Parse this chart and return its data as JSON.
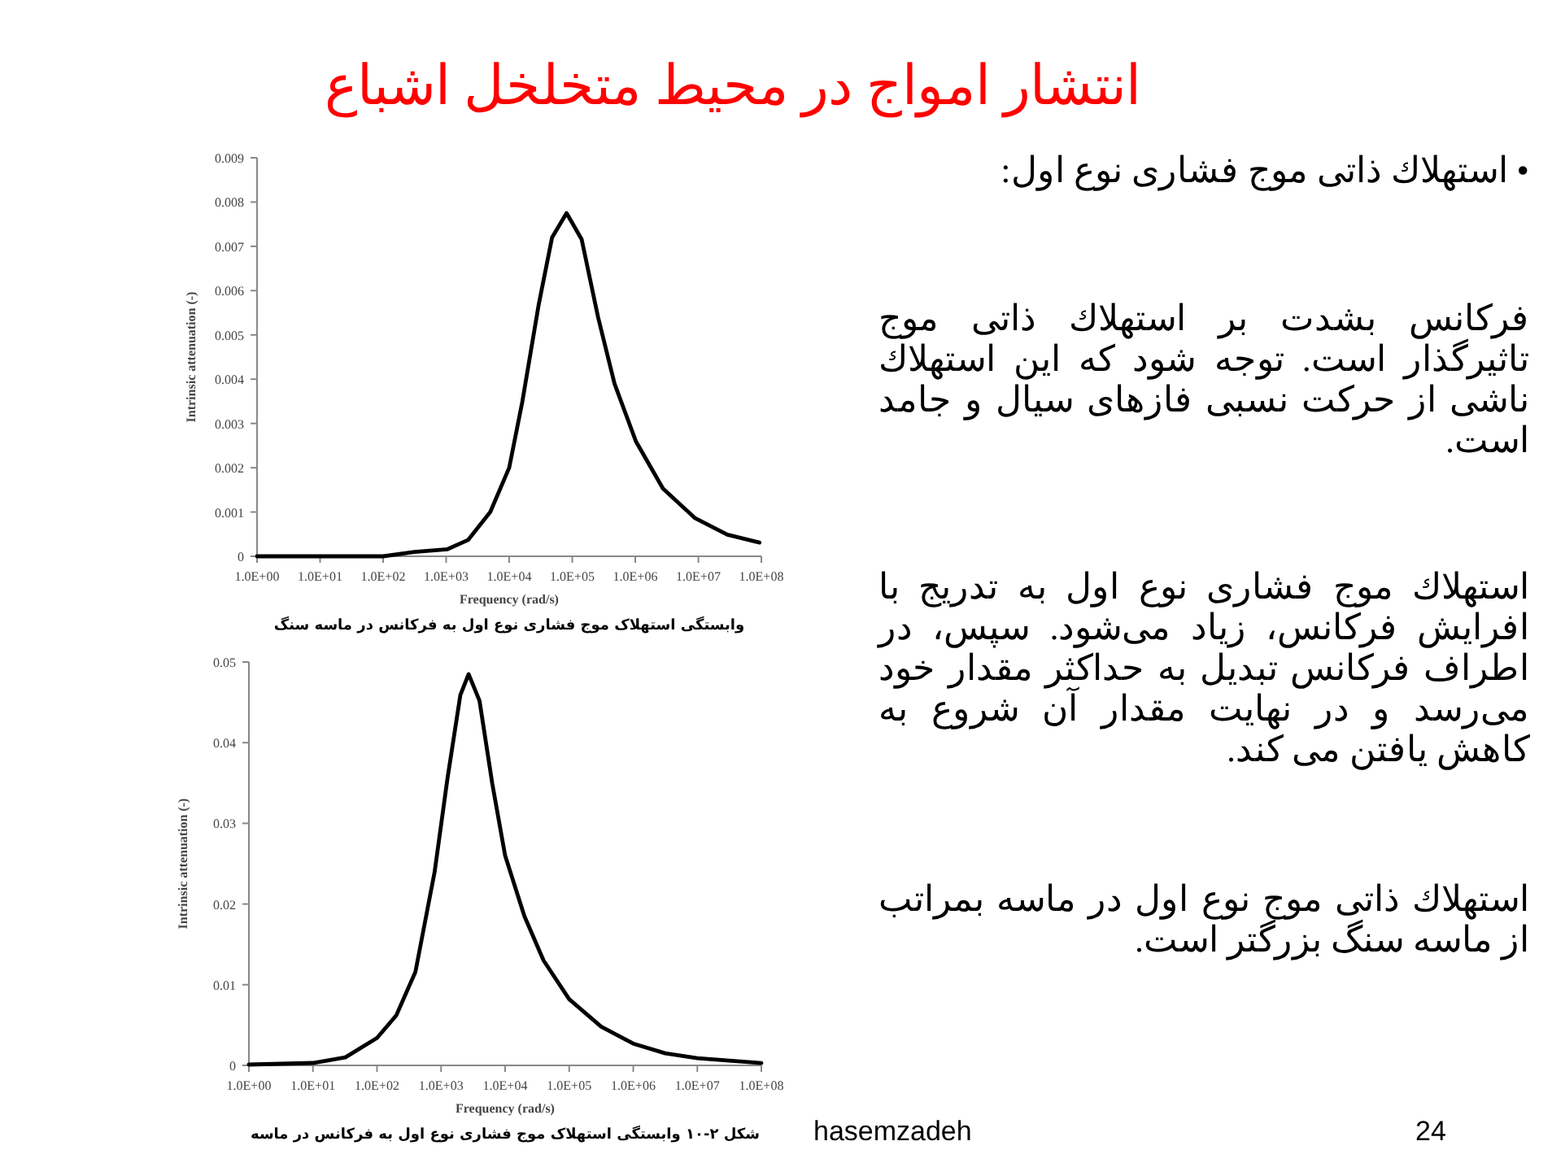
{
  "chart_data": [
    {
      "type": "other",
      "title": "انتشار امواج در محیط متخلخل اشباع",
      "annotations": [
        "• استهلاك ذاتی موج فشاری نوع اول:",
        "فرکانس بشدت بر استهلاك ذاتی موج تاثیرگذار است. توجه شود که این استهلاك ناشی از حرکت نسبی فازهای سیال و جامد است.",
        "استهلاك موج فشاری نوع اول به تدریج با افرایش فرکانس، زیاد می‌شود. سپس، در اطراف فرکانس تبدیل به حداکثر مقدار خود می‌رسد و در نهایت مقدار آن شروع به کاهش یافتن می کند.",
        "استهلاك ذاتی موج نوع اول در ماسه بمراتب از ماسه سنگ بزرگتر است.",
        "hasemzadeh",
        "24"
      ]
    },
    {
      "type": "line",
      "xlabel": "Frequency (rad/s)",
      "ylabel": "Intrinsic attenuation (-)",
      "log": "x",
      "xlim": [
        1,
        100000000
      ],
      "xticks": [
        {
          "value": 1,
          "label": "1.0E+00"
        },
        {
          "value": 10,
          "label": "1.0E+01"
        },
        {
          "value": 100,
          "label": "1.0E+02"
        },
        {
          "value": 1000,
          "label": "1.0E+03"
        },
        {
          "value": 10000,
          "label": "1.0E+04"
        },
        {
          "value": 100000,
          "label": "1.0E+05"
        },
        {
          "value": 1000000,
          "label": "1.0E+06"
        },
        {
          "value": 10000000,
          "label": "1.0E+07"
        },
        {
          "value": 100000000,
          "label": "1.0E+08"
        }
      ],
      "ylim": [
        0,
        0.009
      ],
      "yticks": [
        0,
        0.001,
        0.002,
        0.003,
        0.004,
        0.005,
        0.006,
        0.007,
        0.008,
        0.009
      ],
      "x": [
        1,
        10,
        100,
        316,
        1050,
        2240,
        5010,
        10000,
        16200,
        29500,
        47900,
        81300,
        141000,
        257000,
        468000,
        1020000,
        2750000,
        8910000,
        28800000,
        93300000
      ],
      "series": [
        {
          "color": "#000000",
          "values": [
            0,
            0,
            0,
            0.0001,
            0.00016,
            0.00037,
            0.001,
            0.002,
            0.0035,
            0.0057,
            0.0072,
            0.00775,
            0.00716,
            0.0054,
            0.0039,
            0.0026,
            0.00153,
            0.00086,
            0.00049,
            0.00031
          ]
        }
      ],
      "annotations": [
        "وابستگی استهلاک موج فشاری نوع اول به فرکانس در ماسه سنگ"
      ]
    },
    {
      "type": "line",
      "xlabel": "Frequency (rad/s)",
      "ylabel": "Intrinsic attenuation (-)",
      "log": "x",
      "xlim": [
        1,
        100000000
      ],
      "xticks": [
        {
          "value": 1,
          "label": "1.0E+00"
        },
        {
          "value": 10,
          "label": "1.0E+01"
        },
        {
          "value": 100,
          "label": "1.0E+02"
        },
        {
          "value": 1000,
          "label": "1.0E+03"
        },
        {
          "value": 10000,
          "label": "1.0E+04"
        },
        {
          "value": 100000,
          "label": "1.0E+05"
        },
        {
          "value": 1000000,
          "label": "1.0E+06"
        },
        {
          "value": 10000000,
          "label": "1.0E+07"
        },
        {
          "value": 100000000,
          "label": "1.0E+08"
        }
      ],
      "ylim": [
        0,
        0.05
      ],
      "yticks": [
        0,
        0.01,
        0.02,
        0.03,
        0.04,
        0.05
      ],
      "x": [
        1,
        10,
        32,
        100,
        200,
        398,
        794,
        1260,
        2000,
        2690,
        3980,
        6310,
        10000,
        20000,
        39800,
        100000,
        316000,
        1000000,
        3160000,
        10000000,
        100000000
      ],
      "series": [
        {
          "color": "#000000",
          "values": [
            0.0001,
            0.0003,
            0.001,
            0.0034,
            0.0062,
            0.0116,
            0.024,
            0.0356,
            0.0459,
            0.0485,
            0.0452,
            0.0349,
            0.026,
            0.0185,
            0.013,
            0.0082,
            0.0048,
            0.0027,
            0.0015,
            0.0009,
            0.0003
          ]
        }
      ],
      "annotations": [
        "شکل ۲-۱۰ وابستگی استهلاک موج فشاری نوع اول به فرکانس در ماسه"
      ]
    }
  ]
}
